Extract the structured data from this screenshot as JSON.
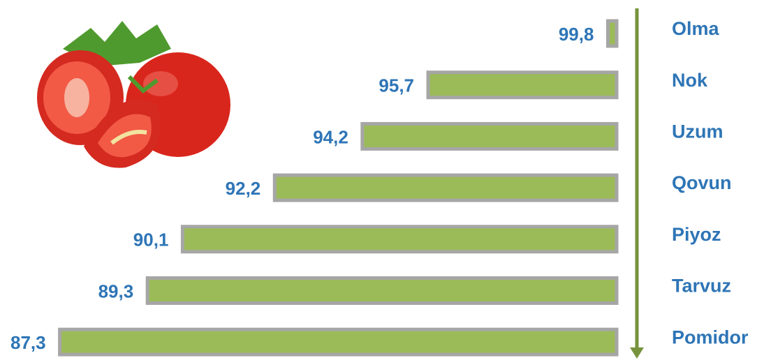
{
  "chart_data": {
    "type": "bar",
    "categories": [
      "Olma",
      "Nok",
      "Uzum",
      "Qovun",
      "Piyoz",
      "Tarvuz",
      "Pomidor"
    ],
    "values": [
      99.8,
      95.7,
      94.2,
      92.2,
      90.1,
      89.3,
      87.3
    ],
    "value_labels": [
      "99,8",
      "95,7",
      "94,2",
      "92,2",
      "90,1",
      "89,3",
      "87,3"
    ],
    "color": "#9bbb59",
    "border_color": "#a6a6a6",
    "label_color": "#2e75b6",
    "axis_color": "#77933c",
    "xlim": [
      100,
      86
    ]
  }
}
